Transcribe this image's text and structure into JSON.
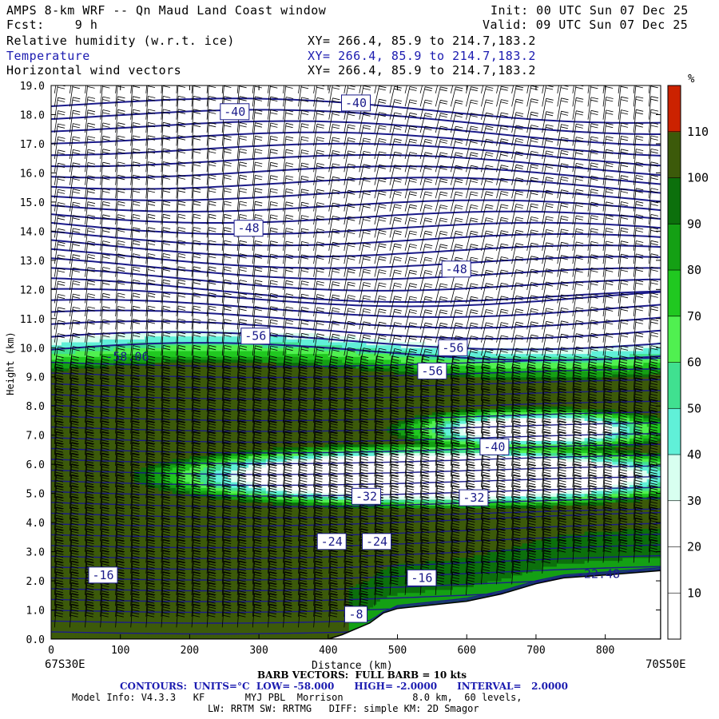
{
  "header": {
    "title": "AMPS 8-km WRF -- Qn Maud Land Coast window",
    "init": "Init: 00 UTC Sun 07 Dec 25",
    "fcst": "Fcst:    9 h",
    "valid": "Valid: 09 UTC Sun 07 Dec 25",
    "fields": [
      {
        "name": "Relative humidity (w.r.t. ice)",
        "xy": "XY= 266.4, 85.9 to 214.7,183.2",
        "color": "#000000"
      },
      {
        "name": "Temperature",
        "xy": "XY= 266.4, 85.9 to 214.7,183.2",
        "color": "#1b1bb0"
      },
      {
        "name": "Horizontal wind vectors",
        "xy": "XY= 266.4, 85.9 to 214.7,183.2",
        "color": "#000000"
      }
    ]
  },
  "chart_data": {
    "type": "heatmap",
    "xlabel": "Distance (km)",
    "ylabel": "Height (km)",
    "xlim": [
      0,
      880
    ],
    "ylim": [
      0,
      19
    ],
    "x_ticks": [
      0,
      100,
      200,
      300,
      400,
      500,
      600,
      700,
      800
    ],
    "y_ticks": [
      "0.0",
      "1.0",
      "2.0",
      "3.0",
      "4.0",
      "5.0",
      "6.0",
      "7.0",
      "8.0",
      "9.0",
      "10.0",
      "11.0",
      "12.0",
      "13.0",
      "14.0",
      "15.0",
      "16.0",
      "17.0",
      "18.0",
      "19.0"
    ],
    "x_start_label": "67S30E",
    "x_end_label": "70S50E",
    "colorbar": {
      "unit": "%",
      "levels": [
        10,
        20,
        30,
        40,
        50,
        60,
        70,
        80,
        90,
        100,
        110
      ],
      "colors": [
        "#ffffff",
        "#ffffff",
        "#ffffff",
        "#d8fff0",
        "#60f0d8",
        "#40e090",
        "#50f050",
        "#20c820",
        "#14a014",
        "#0c700c",
        "#3c5a0a",
        "#cc2200"
      ]
    },
    "temperature_labels": [
      {
        "text": "-40",
        "x": 265,
        "y": 18.1
      },
      {
        "text": "-40",
        "x": 440,
        "y": 18.4
      },
      {
        "text": "-48",
        "x": 285,
        "y": 14.1
      },
      {
        "text": "-48",
        "x": 585,
        "y": 12.7
      },
      {
        "text": "-56",
        "x": 295,
        "y": 10.4
      },
      {
        "text": "-56",
        "x": 580,
        "y": 10.0
      },
      {
        "text": "-56",
        "x": 550,
        "y": 9.2
      },
      {
        "text": "-40",
        "x": 640,
        "y": 6.6
      },
      {
        "text": "-32",
        "x": 455,
        "y": 4.9
      },
      {
        "text": "-32",
        "x": 610,
        "y": 4.85
      },
      {
        "text": "-24",
        "x": 405,
        "y": 3.35
      },
      {
        "text": "-24",
        "x": 470,
        "y": 3.35
      },
      {
        "text": "-16",
        "x": 75,
        "y": 2.2
      },
      {
        "text": "-16",
        "x": 535,
        "y": 2.1
      },
      {
        "text": "-8",
        "x": 440,
        "y": 0.85
      }
    ],
    "extrema_labels": [
      {
        "text": "-58.06",
        "x": 110,
        "y": 9.55
      },
      {
        "text": "-22.48",
        "x": 790,
        "y": 2.1
      }
    ],
    "terrain": [
      [
        0,
        0
      ],
      [
        400,
        0
      ],
      [
        420,
        0.15
      ],
      [
        440,
        0.35
      ],
      [
        460,
        0.55
      ],
      [
        480,
        0.9
      ],
      [
        500,
        1.05
      ],
      [
        540,
        1.15
      ],
      [
        600,
        1.3
      ],
      [
        650,
        1.55
      ],
      [
        700,
        1.9
      ],
      [
        740,
        2.1
      ],
      [
        800,
        2.2
      ],
      [
        880,
        2.35
      ]
    ]
  },
  "footer": {
    "barb": "BARB VECTORS:  FULL BARB = 10 kts",
    "contours": "CONTOURS:  UNITS=°C  LOW= -58.000      HIGH= -2.0000      INTERVAL=   2.0000",
    "model": "Model Info: V4.3.3   KF       MYJ PBL  Morrison            8.0 km,  60 levels,",
    "physics": "LW: RRTM SW: RRTMG   DIFF: simple KM: 2D Smagor"
  }
}
